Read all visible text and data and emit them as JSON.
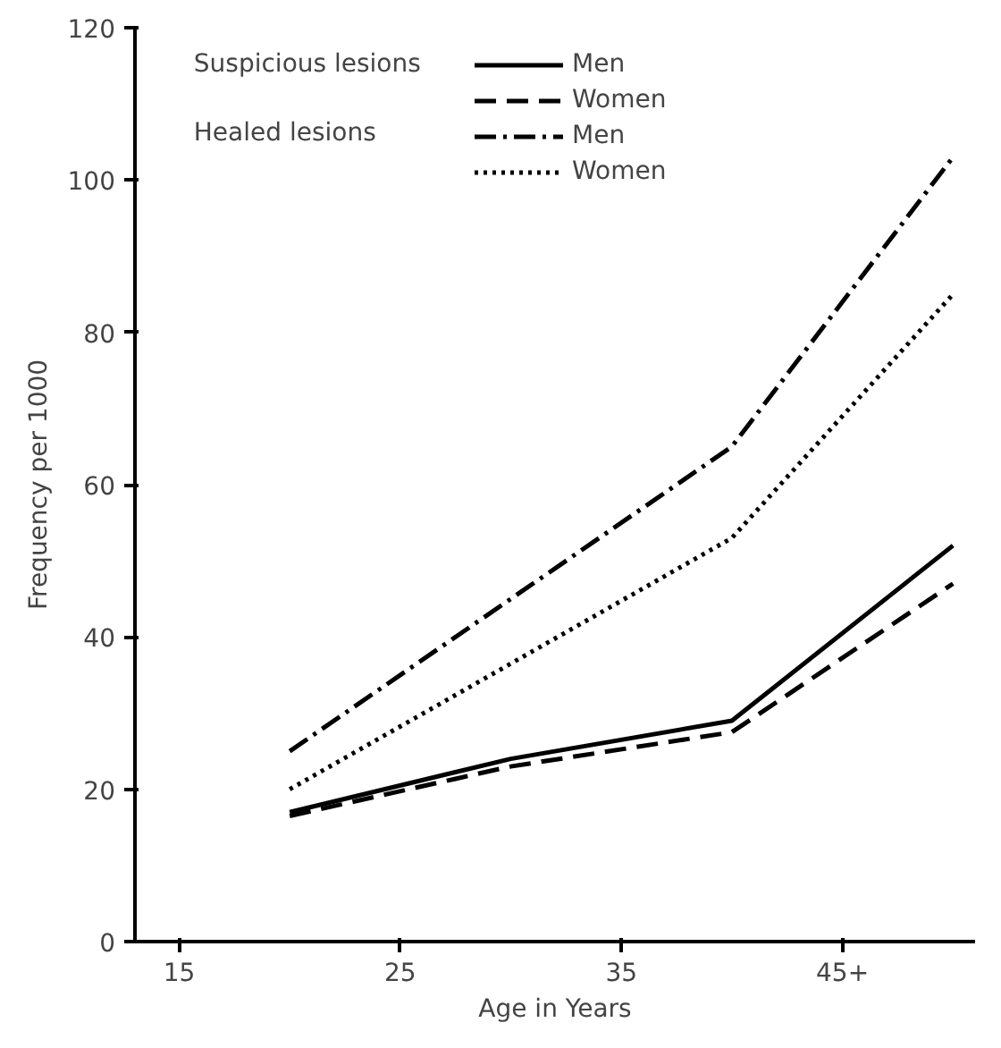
{
  "chart_data": {
    "type": "line",
    "xlabel": "Age in Years",
    "ylabel": "Frequency per 1000",
    "x": [
      20,
      30,
      40,
      50
    ],
    "series": [
      {
        "name": "Men",
        "color": "#000000",
        "line_style": "solid",
        "values": [
          17,
          24,
          29,
          52
        ]
      },
      {
        "name": "Women",
        "color": "#000000",
        "line_style": "dashed",
        "values": [
          16.5,
          23,
          27.5,
          47
        ]
      },
      {
        "name": "Men",
        "color": "#000000",
        "line_style": "dashdot",
        "values": [
          25,
          null,
          65,
          103
        ]
      },
      {
        "name": "Women",
        "color": "#000000",
        "line_style": "dotted",
        "values": [
          20,
          null,
          53,
          85
        ]
      }
    ],
    "annotations": [
      "Suspicious lesions",
      "Healed lesions"
    ],
    "xlim": [
      13,
      51
    ],
    "ylim": [
      0,
      120
    ],
    "xticks": [
      15,
      25,
      35,
      {
        "value": 45,
        "label": "45+"
      }
    ],
    "yticks": [
      0,
      20,
      40,
      60,
      80,
      100,
      120
    ],
    "legend": "top right",
    "grid": false,
    "marker": "none"
  }
}
